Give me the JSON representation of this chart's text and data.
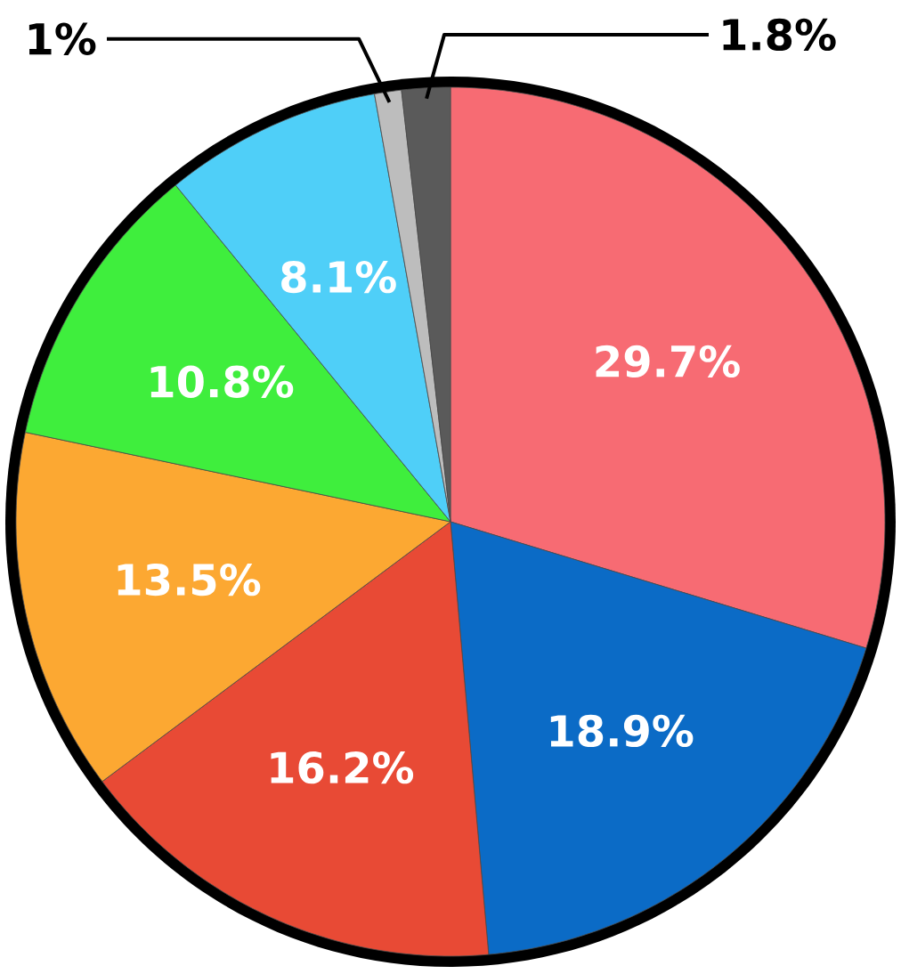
{
  "chart_data": {
    "type": "pie",
    "categories": [
      null,
      null,
      null,
      null,
      null,
      null,
      null,
      null
    ],
    "values": [
      29.7,
      18.9,
      16.2,
      13.5,
      10.8,
      8.1,
      1,
      1.8
    ],
    "value_labels": [
      "29.7%",
      "18.9%",
      "16.2%",
      "13.5%",
      "10.8%",
      "8.1%",
      "1%",
      "1.8%"
    ],
    "colors": [
      "#f76b73",
      "#0b6bc6",
      "#e84a35",
      "#fca832",
      "#3fee3d",
      "#4fcff8",
      "#bdbdbd",
      "#5a5a5a"
    ]
  }
}
